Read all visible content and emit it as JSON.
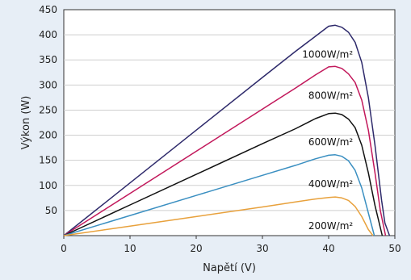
{
  "chart_data": {
    "type": "line",
    "title": "",
    "xlabel": "Napětí (V)",
    "ylabel": "Výkon (W)",
    "xlim": [
      0,
      50
    ],
    "ylim": [
      0,
      450
    ],
    "xticks": [
      0,
      10,
      20,
      30,
      40,
      50
    ],
    "yticks": [
      50,
      100,
      150,
      200,
      250,
      300,
      350,
      400,
      450
    ],
    "grid": "horizontal",
    "series": [
      {
        "name": "1000W/m²",
        "color": "#2e2a6b",
        "x": [
          0,
          10,
          20,
          30,
          35,
          38,
          40,
          41,
          42,
          43,
          44,
          45,
          46,
          47,
          48,
          48.5,
          49.2
        ],
        "y": [
          0,
          105,
          210,
          315,
          367,
          397,
          417,
          419,
          415,
          405,
          385,
          345,
          275,
          180,
          70,
          25,
          0
        ]
      },
      {
        "name": "800W/m²",
        "color": "#c2185b",
        "x": [
          0,
          10,
          20,
          30,
          35,
          38,
          40,
          41,
          42,
          43,
          44,
          45,
          46,
          47,
          47.8,
          48.6
        ],
        "y": [
          0,
          84,
          168,
          252,
          294,
          320,
          336,
          337,
          333,
          322,
          305,
          270,
          210,
          125,
          50,
          0
        ]
      },
      {
        "name": "600W/m²",
        "color": "#111111",
        "x": [
          0,
          10,
          20,
          30,
          35,
          38,
          40,
          41,
          42,
          43,
          44,
          45,
          46,
          47,
          48.1
        ],
        "y": [
          0,
          61,
          122,
          183,
          213,
          233,
          243,
          244,
          241,
          232,
          215,
          180,
          125,
          60,
          0
        ]
      },
      {
        "name": "400W/m²",
        "color": "#3a8fc1",
        "x": [
          0,
          10,
          20,
          30,
          35,
          38,
          40,
          41,
          42,
          43,
          44,
          45,
          46,
          46.9
        ],
        "y": [
          0,
          40,
          80,
          120,
          140,
          153,
          160,
          161,
          158,
          149,
          130,
          95,
          45,
          0
        ]
      },
      {
        "name": "200W/m²",
        "color": "#e8a13c",
        "x": [
          0,
          10,
          20,
          30,
          35,
          38,
          40,
          41,
          42,
          43,
          44,
          45,
          46,
          46.7
        ],
        "y": [
          0,
          19,
          38,
          57,
          67,
          73,
          76,
          77,
          75,
          70,
          58,
          38,
          12,
          0
        ]
      }
    ]
  }
}
